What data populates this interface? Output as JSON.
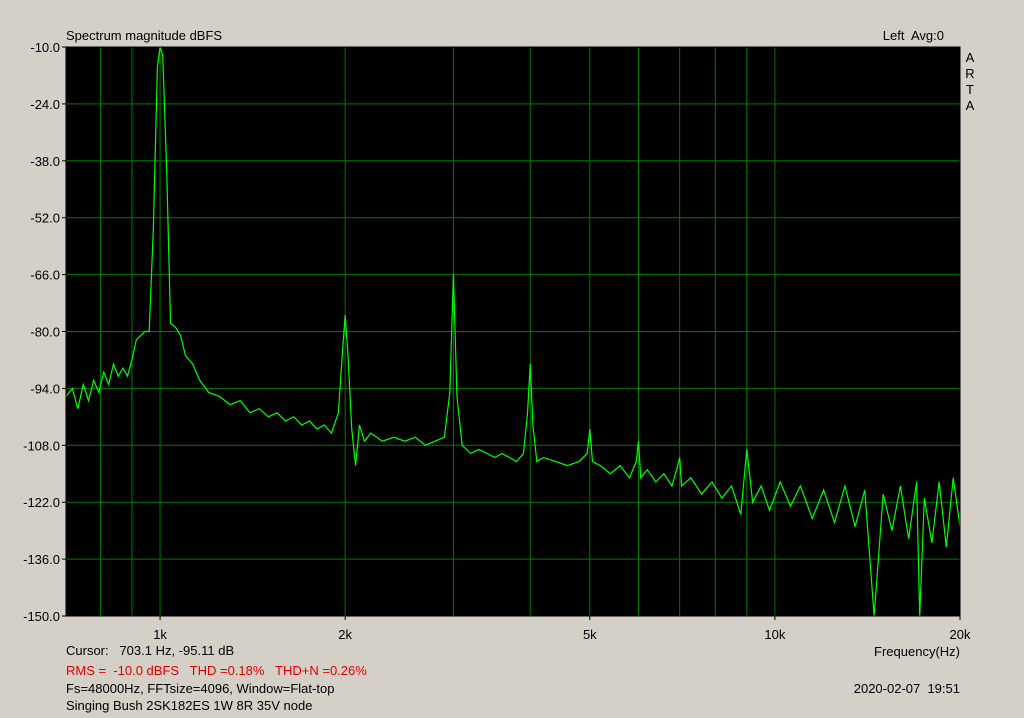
{
  "chart_data": {
    "type": "line",
    "title": "Spectrum magnitude dBFS",
    "channel_label": "Left  Avg:0",
    "brand": "ARTA",
    "x_label": "Frequency(Hz)",
    "cursor": "Cursor:   703.1 Hz, -95.11 dB",
    "summary": "RMS =  -10.0 dBFS   THD =0.18%   THD+N =0.26%",
    "settings": "Fs=48000Hz, FFTsize=4096, Window=Flat-top",
    "description": "Singing Bush 2SK182ES 1W 8R 35V node",
    "timestamp": "2020-02-07  19:51",
    "log_x": true,
    "grid": true,
    "color": "#00ff00",
    "xlim": [
      703.1,
      20000
    ],
    "xticks": [
      {
        "value": 1000,
        "label": "1k"
      },
      {
        "value": 2000,
        "label": "2k"
      },
      {
        "value": 5000,
        "label": "5k"
      },
      {
        "value": 10000,
        "label": "10k"
      },
      {
        "value": 20000,
        "label": "20k"
      }
    ],
    "xminor": [
      800,
      900,
      3000,
      4000,
      6000,
      7000,
      8000,
      9000
    ],
    "ylim": [
      -150,
      -10
    ],
    "yticks": [
      {
        "value": -10,
        "label": "-10.0"
      },
      {
        "value": -24,
        "label": "-24.0"
      },
      {
        "value": -38,
        "label": "-38.0"
      },
      {
        "value": -52,
        "label": "-52.0"
      },
      {
        "value": -66,
        "label": "-66.0"
      },
      {
        "value": -80,
        "label": "-80.0"
      },
      {
        "value": -94,
        "label": "-94.0"
      },
      {
        "value": -108,
        "label": "-108.0"
      },
      {
        "value": -122,
        "label": "-122.0"
      },
      {
        "value": -136,
        "label": "-136.0"
      },
      {
        "value": -150,
        "label": "-150.0"
      }
    ],
    "x": [
      703,
      720,
      735,
      750,
      765,
      780,
      795,
      810,
      825,
      840,
      855,
      870,
      885,
      900,
      915,
      930,
      945,
      960,
      975,
      990,
      1000,
      1010,
      1025,
      1040,
      1060,
      1080,
      1100,
      1130,
      1160,
      1200,
      1250,
      1300,
      1350,
      1400,
      1450,
      1500,
      1550,
      1600,
      1650,
      1700,
      1750,
      1800,
      1850,
      1900,
      1950,
      1980,
      2000,
      2020,
      2050,
      2080,
      2110,
      2150,
      2200,
      2300,
      2400,
      2500,
      2600,
      2700,
      2800,
      2900,
      2960,
      3000,
      3040,
      3100,
      3200,
      3300,
      3400,
      3500,
      3600,
      3700,
      3800,
      3900,
      3960,
      4000,
      4040,
      4100,
      4200,
      4400,
      4600,
      4800,
      4950,
      5000,
      5050,
      5200,
      5400,
      5600,
      5800,
      5950,
      6000,
      6050,
      6200,
      6400,
      6600,
      6800,
      6950,
      7000,
      7050,
      7300,
      7600,
      7900,
      8200,
      8500,
      8800,
      9000,
      9200,
      9500,
      9800,
      10200,
      10600,
      11000,
      11500,
      12000,
      12500,
      13000,
      13500,
      14000,
      14500,
      15000,
      15500,
      16000,
      16500,
      17000,
      17200,
      17500,
      18000,
      18500,
      19000,
      19500,
      20000
    ],
    "values": [
      -96,
      -94,
      -99,
      -93,
      -97,
      -92,
      -95,
      -90,
      -93,
      -88,
      -91,
      -89,
      -91,
      -87,
      -82,
      -81,
      -80,
      -80,
      -55,
      -15,
      -10,
      -12,
      -40,
      -78,
      -79,
      -81,
      -86,
      -88,
      -92,
      -95,
      -96,
      -98,
      -97,
      -100,
      -99,
      -101,
      -100,
      -102,
      -101,
      -103,
      -102,
      -104,
      -103,
      -105,
      -100,
      -85,
      -76,
      -85,
      -104,
      -113,
      -103,
      -107,
      -105,
      -107,
      -106,
      -107,
      -106,
      -108,
      -107,
      -106,
      -95,
      -66,
      -96,
      -108,
      -110,
      -109,
      -110,
      -111,
      -110,
      -111,
      -112,
      -110,
      -100,
      -88,
      -103,
      -112,
      -111,
      -112,
      -113,
      -112,
      -110,
      -104,
      -112,
      -113,
      -115,
      -113,
      -116,
      -112,
      -107,
      -116,
      -114,
      -117,
      -115,
      -118,
      -113,
      -111,
      -118,
      -116,
      -120,
      -117,
      -121,
      -118,
      -125,
      -109,
      -122,
      -118,
      -124,
      -117,
      -123,
      -118,
      -126,
      -119,
      -127,
      -118,
      -128,
      -119,
      -150,
      -120,
      -129,
      -118,
      -131,
      -117,
      -150,
      -121,
      -132,
      -117,
      -133,
      -116,
      -128
    ]
  }
}
